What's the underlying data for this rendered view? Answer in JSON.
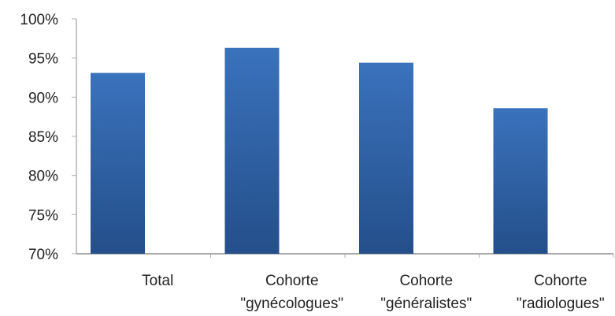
{
  "chart_data": {
    "type": "bar",
    "categories": [
      [
        "Total"
      ],
      [
        "Cohorte",
        "\"gynécologues\""
      ],
      [
        "Cohorte",
        "\"généralistes\""
      ],
      [
        "Cohorte",
        "\"radiologues\""
      ]
    ],
    "values": [
      93.1,
      96.3,
      94.4,
      88.6
    ],
    "ylim": [
      70,
      100
    ],
    "y_ticks": [
      70,
      75,
      80,
      85,
      90,
      95,
      100
    ],
    "y_tick_labels": [
      "70%",
      "75%",
      "80%",
      "85%",
      "90%",
      "95%",
      "100%"
    ],
    "title": "",
    "xlabel": "",
    "ylabel": "",
    "grid": false,
    "colors": {
      "bar_top": "#3a72bc",
      "bar_bottom": "#244f8a",
      "axis": "#8c8c8c",
      "tick_line": "#b0b0b0"
    }
  }
}
